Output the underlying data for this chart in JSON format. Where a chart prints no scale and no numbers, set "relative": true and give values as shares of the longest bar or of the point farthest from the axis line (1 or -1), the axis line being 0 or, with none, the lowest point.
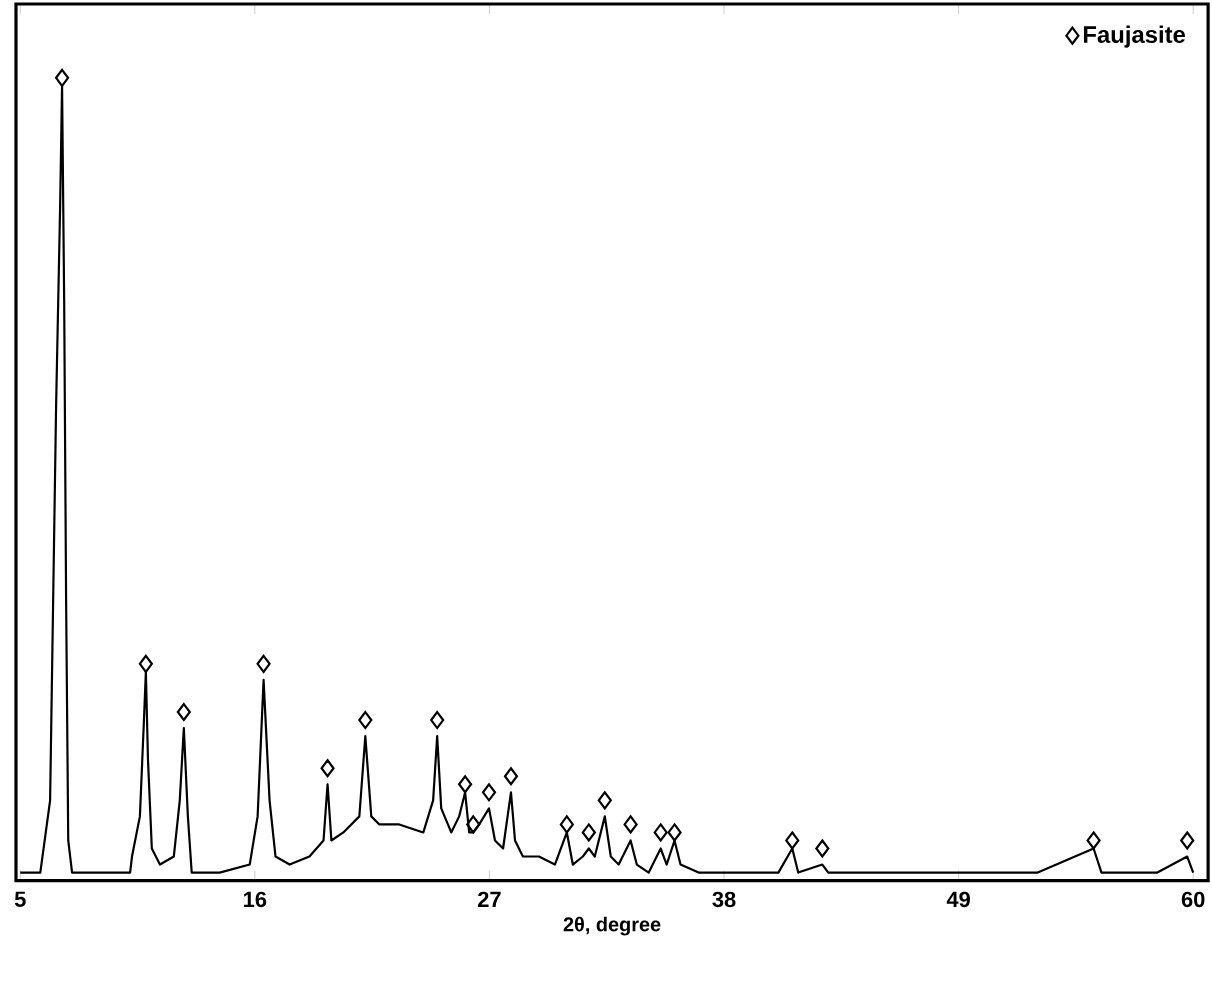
{
  "chart_data": {
    "type": "line",
    "relative": true,
    "xlabel": "2θ, degree",
    "xlim": [
      4.8,
      60.7
    ],
    "xticks": [
      5,
      16,
      27,
      38,
      49,
      60
    ],
    "tick_labels": "x",
    "grid": false,
    "legend": "top right",
    "series": [
      {
        "color": "#000000",
        "marker": "none",
        "x": [
          5.0,
          5.94,
          6.4,
          6.68,
          6.87,
          6.96,
          7.06,
          7.15,
          7.25,
          7.43,
          10.15,
          10.24,
          10.61,
          10.8,
          10.89,
          10.99,
          11.17,
          11.55,
          12.2,
          12.48,
          12.67,
          12.86,
          13.04,
          14.35,
          15.76,
          16.13,
          16.41,
          16.69,
          16.97,
          17.63,
          18.56,
          19.22,
          19.41,
          19.59,
          20.15,
          20.9,
          21.18,
          21.46,
          21.84,
          22.77,
          23.9,
          24.36,
          24.55,
          24.74,
          25.21,
          25.58,
          25.86,
          26.05,
          26.24,
          26.52,
          26.98,
          27.26,
          27.64,
          28.01,
          28.2,
          28.57,
          29.32,
          30.07,
          30.63,
          30.91,
          31.38,
          31.66,
          31.94,
          32.41,
          32.69,
          33.06,
          33.62,
          33.91,
          34.47,
          35.03,
          35.31,
          35.68,
          35.96,
          36.81,
          38.68,
          40.55,
          41.2,
          41.48,
          42.61,
          42.89,
          46.16,
          48.97,
          52.71,
          55.33,
          55.7,
          58.32,
          59.72,
          60.0
        ],
        "values": [
          0.01,
          0.01,
          0.1,
          0.59,
          0.84,
          0.99,
          0.72,
          0.35,
          0.05,
          0.01,
          0.01,
          0.03,
          0.08,
          0.2,
          0.26,
          0.15,
          0.04,
          0.02,
          0.03,
          0.1,
          0.19,
          0.08,
          0.01,
          0.01,
          0.02,
          0.08,
          0.25,
          0.1,
          0.03,
          0.02,
          0.03,
          0.05,
          0.12,
          0.05,
          0.06,
          0.08,
          0.18,
          0.08,
          0.07,
          0.07,
          0.06,
          0.1,
          0.18,
          0.09,
          0.06,
          0.08,
          0.11,
          0.06,
          0.06,
          0.07,
          0.09,
          0.05,
          0.04,
          0.11,
          0.05,
          0.03,
          0.03,
          0.02,
          0.06,
          0.02,
          0.03,
          0.04,
          0.03,
          0.08,
          0.03,
          0.02,
          0.05,
          0.02,
          0.01,
          0.04,
          0.02,
          0.05,
          0.02,
          0.01,
          0.01,
          0.01,
          0.04,
          0.01,
          0.02,
          0.01,
          0.01,
          0.01,
          0.01,
          0.04,
          0.01,
          0.01,
          0.03,
          0.01
        ]
      },
      {
        "type": "scatter",
        "name": "Faujasite",
        "color": "#000000",
        "marker": "diamond",
        "x": [
          6.96,
          10.89,
          12.67,
          16.41,
          19.41,
          21.18,
          24.55,
          25.86,
          26.24,
          26.98,
          28.01,
          30.63,
          31.66,
          32.41,
          33.62,
          35.03,
          35.68,
          41.2,
          42.61,
          55.33,
          59.72
        ],
        "values": [
          1.0,
          0.27,
          0.21,
          0.27,
          0.14,
          0.2,
          0.2,
          0.12,
          0.07,
          0.11,
          0.13,
          0.07,
          0.06,
          0.1,
          0.07,
          0.06,
          0.06,
          0.05,
          0.04,
          0.05,
          0.05
        ]
      }
    ]
  }
}
